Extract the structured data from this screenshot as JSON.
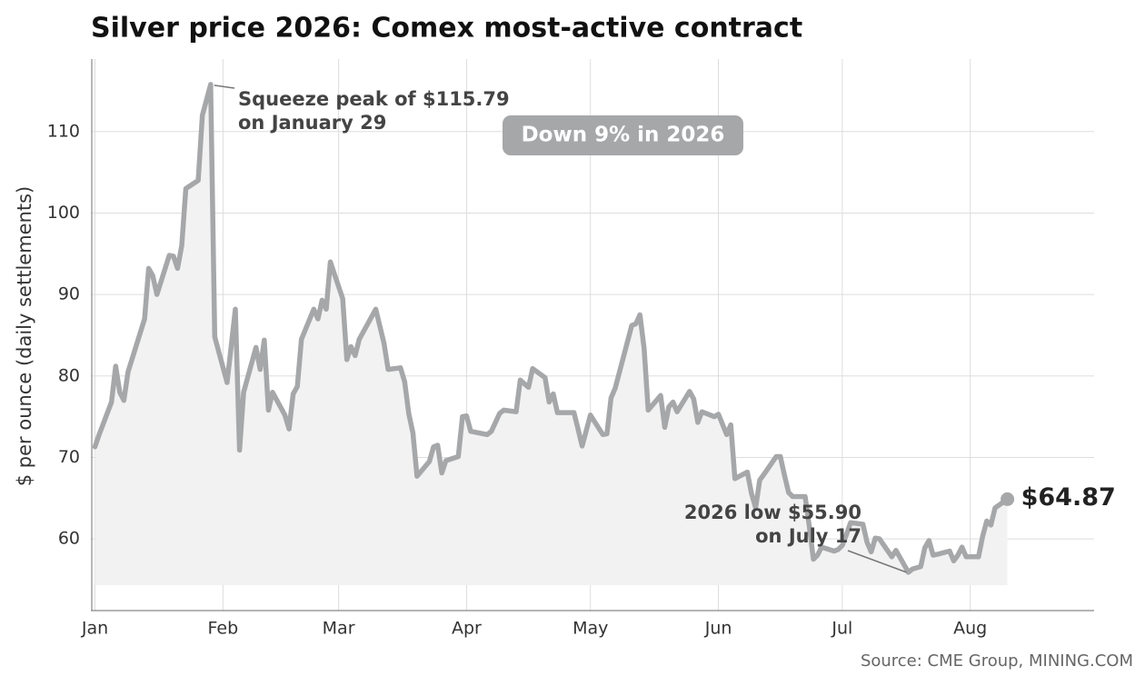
{
  "chart_data": {
    "type": "line",
    "title": "Silver price 2026: Comex most-active contract",
    "y_label": "$ per ounce (daily settlements)",
    "source": "Source: CME Group, MINING.COM",
    "badge": "Down 9% in 2026",
    "peak_note": [
      "Squeeze peak of $115.79",
      "on January 29"
    ],
    "low_note": [
      "2026 low $55.90",
      "on July 17"
    ],
    "end_label": "$64.87",
    "color": "#a6a7a9",
    "grid": true,
    "x": [
      1,
      2,
      5,
      6,
      7,
      8,
      9,
      13,
      14,
      15,
      16,
      19,
      20,
      21,
      22,
      23,
      26,
      27,
      29,
      30,
      33,
      35,
      36,
      37,
      40,
      41,
      42,
      43,
      44,
      47,
      48,
      49,
      50,
      51,
      54,
      55,
      56,
      57,
      58,
      61,
      62,
      63,
      64,
      65,
      69,
      71,
      72,
      75,
      76,
      77,
      78,
      79,
      82,
      83,
      84,
      85,
      86,
      89,
      90,
      91,
      92,
      96,
      97,
      99,
      100,
      103,
      104,
      106,
      107,
      110,
      111,
      112,
      113,
      117,
      118,
      119,
      121,
      124,
      125,
      126,
      127,
      131,
      132,
      133,
      134,
      135,
      138,
      139,
      140,
      141,
      142,
      145,
      146,
      147,
      148,
      151,
      152,
      154,
      155,
      156,
      159,
      160,
      161,
      162,
      163,
      166,
      167,
      168,
      169,
      170,
      173,
      174,
      175,
      176,
      177,
      180,
      181,
      182,
      183,
      184,
      187,
      188,
      189,
      190,
      191,
      194,
      195,
      198,
      199,
      201,
      202,
      203,
      204,
      205,
      208,
      209,
      210,
      211,
      212,
      215,
      216,
      217,
      218,
      219,
      222
    ],
    "values": [
      71.3,
      72.8,
      76.8,
      81.2,
      78.0,
      77.0,
      80.5,
      87.0,
      93.2,
      92.3,
      90.0,
      94.8,
      94.7,
      93.2,
      96.0,
      103.0,
      104.0,
      112.0,
      115.79,
      84.8,
      79.2,
      88.2,
      70.9,
      78.0,
      83.5,
      80.8,
      84.4,
      75.8,
      78.0,
      75.2,
      73.5,
      77.8,
      78.7,
      84.5,
      88.2,
      87.0,
      89.3,
      88.2,
      94.0,
      89.5,
      82.0,
      83.6,
      82.5,
      84.5,
      88.2,
      84.0,
      80.8,
      81.0,
      79.3,
      75.4,
      73.0,
      67.7,
      69.5,
      71.3,
      71.5,
      68.1,
      69.6,
      70.1,
      75.0,
      75.1,
      73.2,
      72.8,
      73.2,
      75.4,
      75.8,
      75.6,
      79.5,
      78.6,
      80.9,
      79.8,
      76.8,
      77.8,
      75.5,
      75.5,
      73.5,
      71.4,
      75.2,
      72.8,
      72.9,
      77.3,
      78.5,
      86.2,
      86.4,
      87.5,
      83.4,
      75.8,
      77.6,
      73.7,
      76.2,
      76.8,
      75.6,
      78.1,
      77.2,
      74.3,
      75.6,
      75.0,
      75.3,
      72.8,
      74.0,
      67.4,
      68.2,
      65.6,
      63.8,
      67.2,
      67.9,
      70.1,
      70.1,
      67.8,
      65.7,
      65.2,
      65.2,
      61.6,
      57.5,
      58.0,
      59.0,
      58.5,
      58.7,
      59.2,
      60.5,
      62.0,
      61.8,
      59.6,
      58.4,
      60.1,
      60.0,
      57.8,
      58.6,
      55.9,
      56.3,
      56.6,
      58.9,
      59.8,
      58.0,
      58.1,
      58.5,
      57.3,
      58.0,
      59.0,
      57.8,
      57.8,
      60.3,
      62.2,
      61.7,
      63.8,
      64.87
    ],
    "xlim": [
      0,
      243
    ],
    "xticks": [
      {
        "value": 1,
        "label": "Jan"
      },
      {
        "value": 32,
        "label": "Feb"
      },
      {
        "value": 60,
        "label": "Mar"
      },
      {
        "value": 91,
        "label": "Apr"
      },
      {
        "value": 121,
        "label": "May"
      },
      {
        "value": 152,
        "label": "Jun"
      },
      {
        "value": 182,
        "label": "Jul"
      },
      {
        "value": 213,
        "label": "Aug"
      }
    ],
    "ylim": [
      51.2,
      118.9
    ],
    "yticks": [
      60,
      70,
      80,
      90,
      100,
      110
    ]
  }
}
